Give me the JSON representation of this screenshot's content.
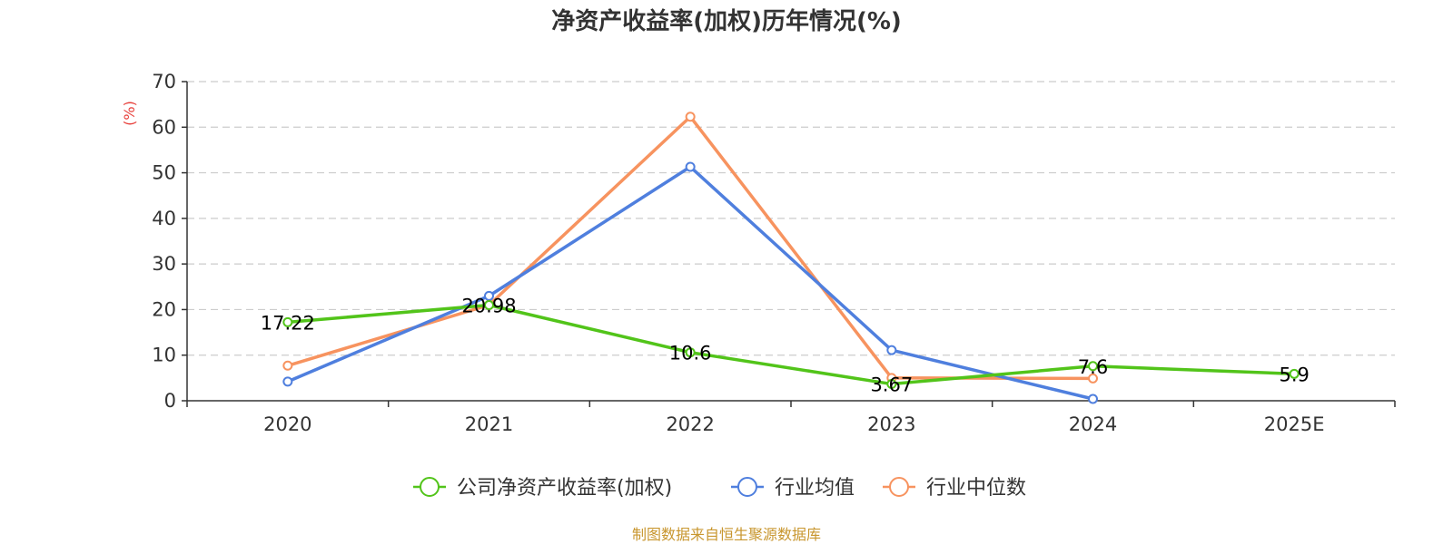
{
  "chart_data": {
    "type": "line",
    "title": "净资产收益率(加权)历年情况(%)",
    "ylabel": "(%)",
    "xlabel": "",
    "ylim": [
      0,
      70
    ],
    "yticks": [
      0,
      10,
      20,
      30,
      40,
      50,
      60,
      70
    ],
    "categories": [
      "2020",
      "2021",
      "2022",
      "2023",
      "2024",
      "2025E"
    ],
    "grid": true,
    "legend_position": "bottom",
    "series": [
      {
        "name": "公司净资产收益率(加权)",
        "color": "#52c41a",
        "values": [
          17.22,
          20.98,
          10.6,
          3.67,
          7.6,
          5.9
        ],
        "labels": [
          "17.22",
          "20.98",
          "10.6",
          "3.67",
          "7.6",
          "5.9"
        ]
      },
      {
        "name": "行业均值",
        "color": "#4f7fde",
        "values": [
          4.2,
          23.0,
          51.3,
          11.1,
          0.4,
          null
        ]
      },
      {
        "name": "行业中位数",
        "color": "#f7935f",
        "values": [
          7.7,
          21.0,
          62.3,
          5.0,
          4.9,
          null
        ]
      }
    ],
    "source": "制图数据来自恒生聚源数据库"
  }
}
